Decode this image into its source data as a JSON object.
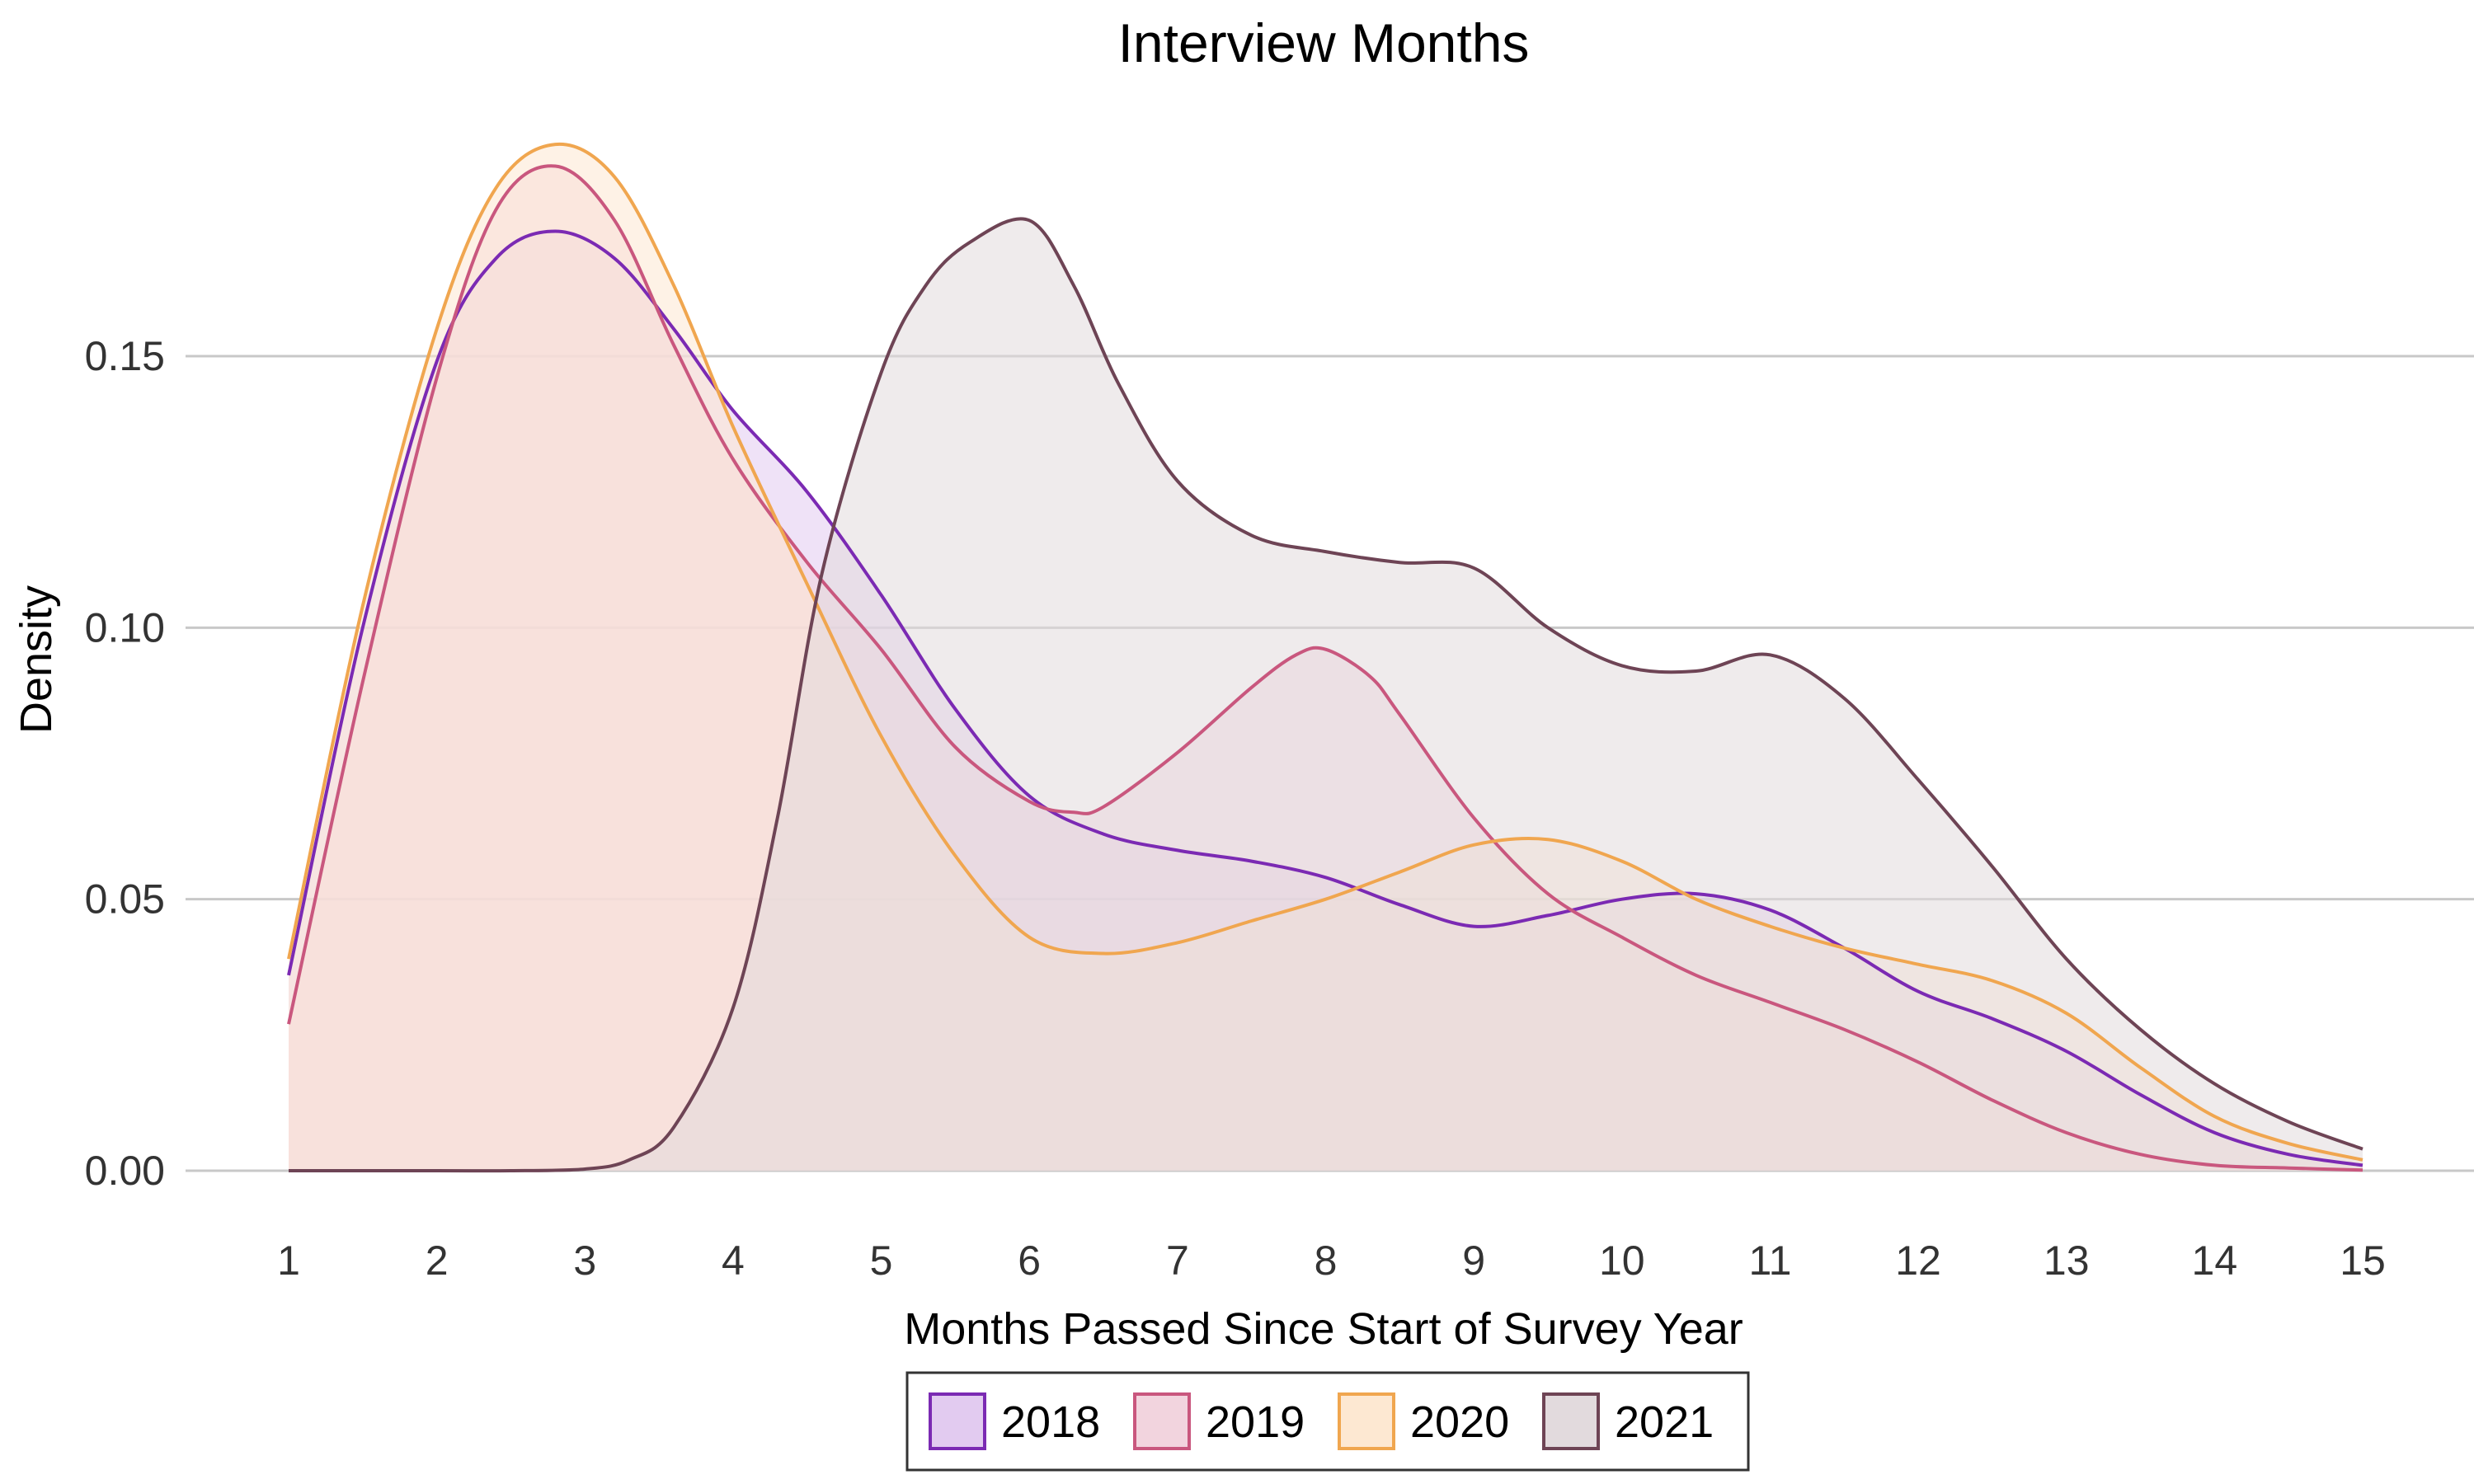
{
  "chart_data": {
    "type": "area",
    "title": "Interview Months",
    "xlabel": "Months Passed Since Start of Survey Year",
    "ylabel": "Density",
    "xlim": [
      1,
      15
    ],
    "ylim": [
      0,
      0.19
    ],
    "x_ticks": [
      1,
      2,
      3,
      4,
      5,
      6,
      7,
      8,
      9,
      10,
      11,
      12,
      13,
      14,
      15
    ],
    "x_tick_labels": [
      "1",
      "2",
      "3",
      "4",
      "5",
      "6",
      "7",
      "8",
      "9",
      "10",
      "11",
      "12",
      "13",
      "14",
      "15"
    ],
    "y_ticks": [
      0,
      0.05,
      0.1,
      0.15
    ],
    "y_tick_labels": [
      "0.00",
      "0.05",
      "0.10",
      "0.15"
    ],
    "grid": "horizontal",
    "legend_position": "bottom",
    "series": [
      {
        "name": "2018",
        "line_color": "#7b2ab3",
        "fill_color": "#e2cbf0",
        "x": [
          1,
          1.5,
          2,
          2.4,
          2.8,
          3.2,
          3.6,
          4,
          4.5,
          5,
          5.5,
          6,
          6.5,
          7,
          7.5,
          8,
          8.5,
          9,
          9.5,
          10,
          10.5,
          11,
          11.5,
          12,
          12.5,
          13,
          13.5,
          14,
          14.5,
          15
        ],
        "values": [
          0.036,
          0.1,
          0.149,
          0.168,
          0.173,
          0.168,
          0.155,
          0.14,
          0.125,
          0.106,
          0.085,
          0.069,
          0.062,
          0.059,
          0.057,
          0.054,
          0.049,
          0.045,
          0.047,
          0.05,
          0.051,
          0.048,
          0.041,
          0.033,
          0.028,
          0.022,
          0.014,
          0.007,
          0.003,
          0.001
        ]
      },
      {
        "name": "2019",
        "line_color": "#c9577e",
        "fill_color": "#f2d4de",
        "x": [
          1,
          1.5,
          2,
          2.4,
          2.8,
          3.2,
          3.6,
          4,
          4.5,
          5,
          5.5,
          6,
          6.3,
          6.5,
          7,
          7.5,
          7.8,
          8,
          8.3,
          8.5,
          9,
          9.5,
          10,
          10.5,
          11,
          11.5,
          12,
          12.5,
          13,
          13.5,
          14,
          14.5,
          15
        ],
        "values": [
          0.027,
          0.09,
          0.146,
          0.177,
          0.185,
          0.175,
          0.152,
          0.131,
          0.112,
          0.096,
          0.078,
          0.068,
          0.066,
          0.067,
          0.077,
          0.089,
          0.095,
          0.096,
          0.091,
          0.084,
          0.065,
          0.051,
          0.043,
          0.036,
          0.031,
          0.026,
          0.02,
          0.013,
          0.007,
          0.003,
          0.001,
          0.0005,
          0.0001
        ]
      },
      {
        "name": "2020",
        "line_color": "#f0a64f",
        "fill_color": "#fde8d2",
        "x": [
          1,
          1.5,
          2,
          2.4,
          2.8,
          3.2,
          3.6,
          4,
          4.5,
          5,
          5.5,
          6,
          6.5,
          7,
          7.5,
          8,
          8.5,
          9,
          9.5,
          10,
          10.5,
          11,
          11.5,
          12,
          12.5,
          13,
          13.5,
          14,
          14.5,
          15
        ],
        "values": [
          0.039,
          0.104,
          0.155,
          0.181,
          0.189,
          0.183,
          0.163,
          0.137,
          0.108,
          0.08,
          0.058,
          0.043,
          0.04,
          0.042,
          0.046,
          0.05,
          0.055,
          0.06,
          0.061,
          0.057,
          0.05,
          0.045,
          0.041,
          0.038,
          0.035,
          0.029,
          0.019,
          0.01,
          0.005,
          0.002
        ]
      },
      {
        "name": "2021",
        "line_color": "#6e4455",
        "fill_color": "#e2dadd",
        "x": [
          1,
          2,
          2.5,
          3,
          3.3,
          3.6,
          4,
          4.3,
          4.6,
          5,
          5.3,
          5.6,
          6,
          6.3,
          6.6,
          7,
          7.5,
          8,
          8.5,
          9,
          9.5,
          10,
          10.5,
          11,
          11.5,
          12,
          12.5,
          13,
          13.5,
          14,
          14.5,
          15
        ],
        "values": [
          0,
          0,
          0,
          0.0003,
          0.002,
          0.008,
          0.03,
          0.065,
          0.11,
          0.147,
          0.163,
          0.171,
          0.175,
          0.163,
          0.145,
          0.127,
          0.117,
          0.114,
          0.112,
          0.111,
          0.1,
          0.093,
          0.092,
          0.095,
          0.087,
          0.072,
          0.056,
          0.039,
          0.026,
          0.016,
          0.009,
          0.004
        ]
      }
    ]
  }
}
